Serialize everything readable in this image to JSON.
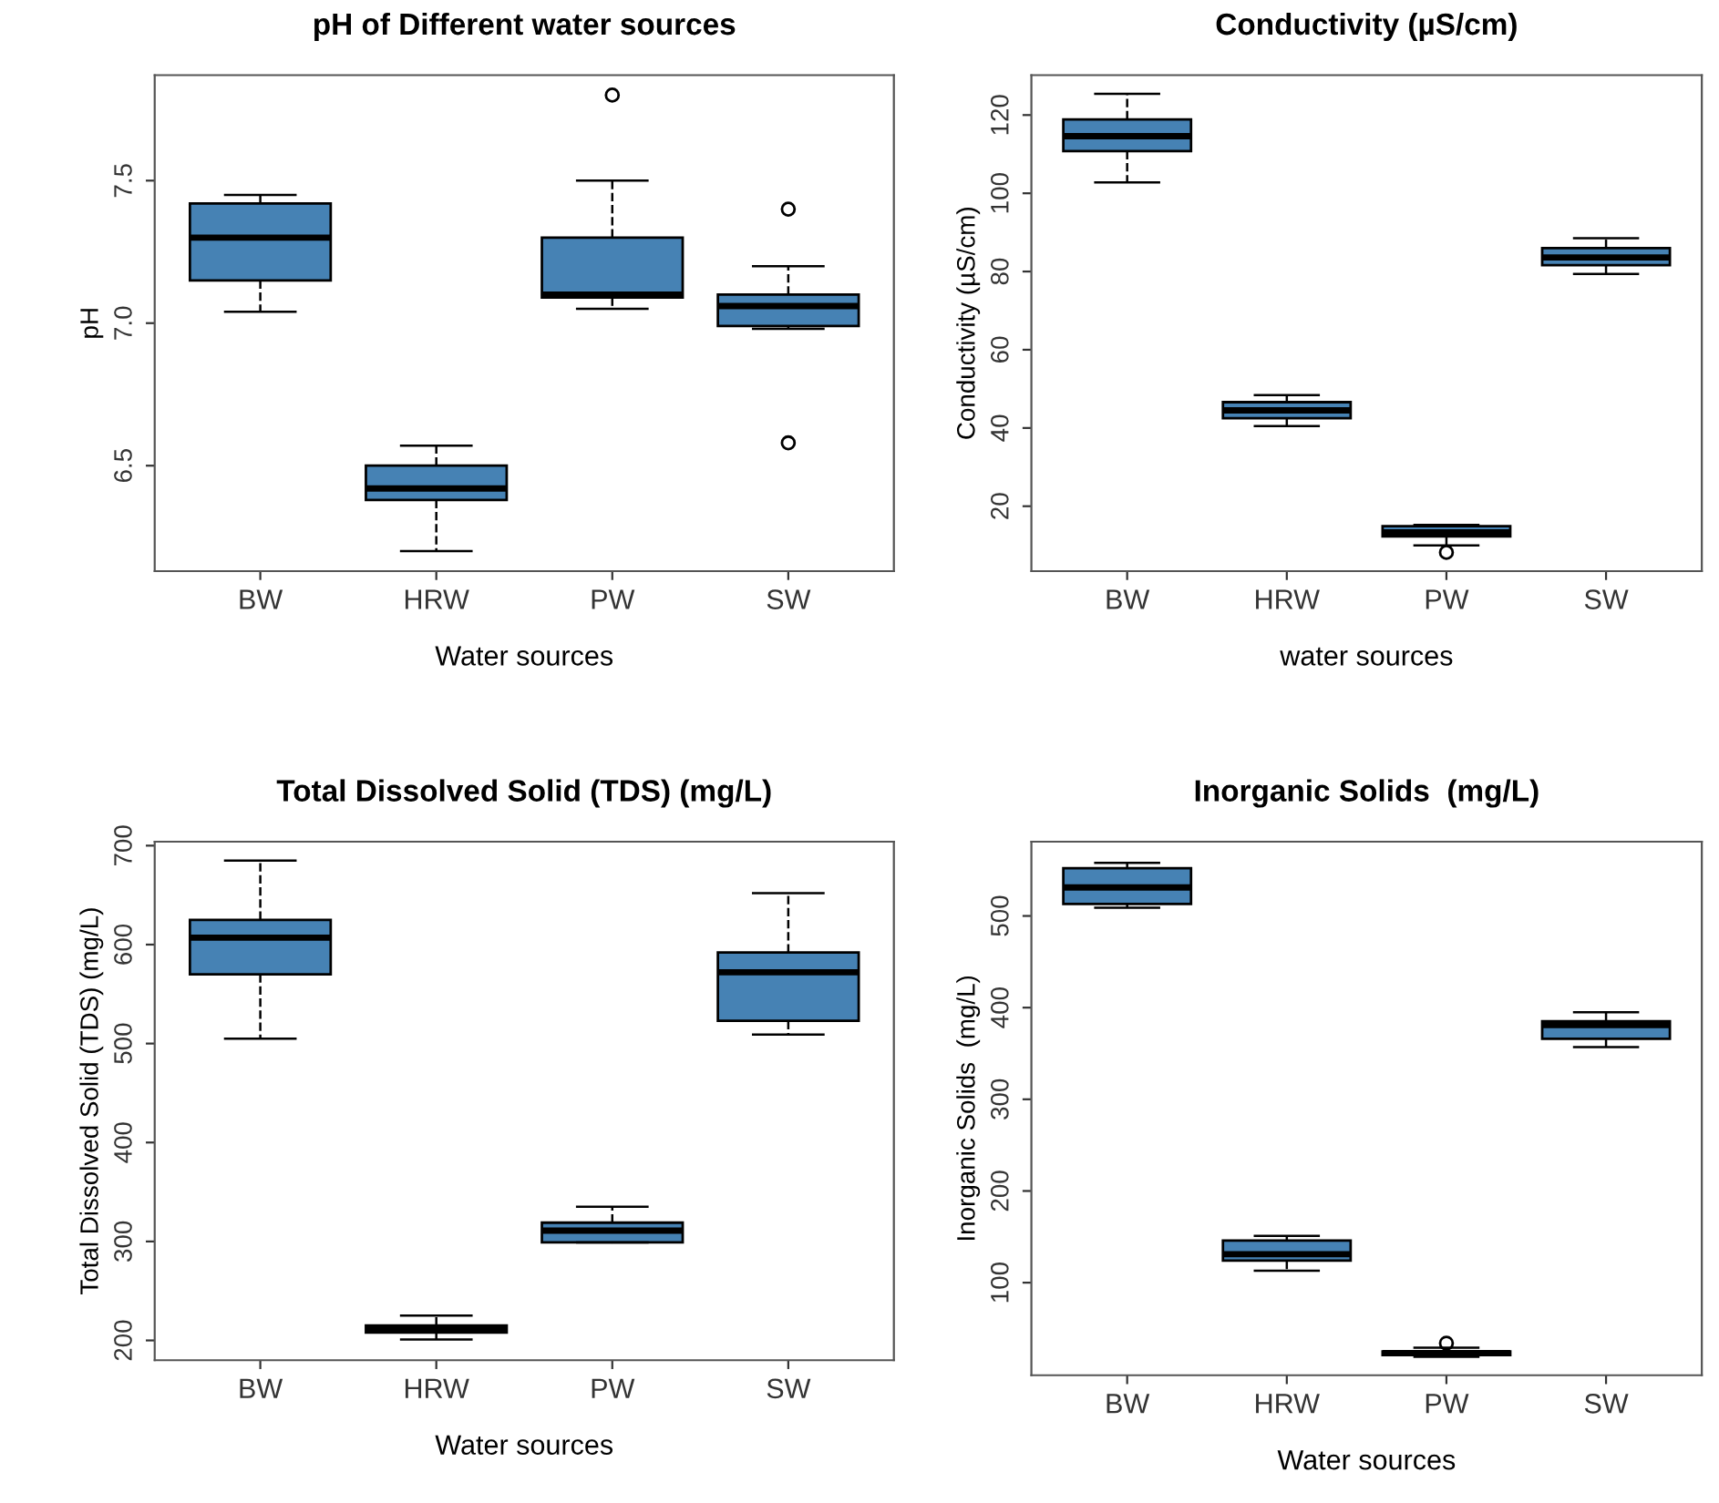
{
  "chart_data": [
    {
      "type": "box",
      "title": "pH of Different water sources",
      "xlabel": "Water sources",
      "ylabel": "pH",
      "categories": [
        "BW",
        "HRW",
        "PW",
        "SW"
      ],
      "color": "#4682b4",
      "ylim": [
        6.13,
        7.87
      ],
      "yticks": [
        6.5,
        {
          "value": 7.0,
          "label": "7.0"
        },
        7.5
      ],
      "boxes": [
        {
          "low": 7.04,
          "q1": 7.15,
          "median": 7.3,
          "q3": 7.42,
          "high": 7.45
        },
        {
          "low": 6.2,
          "q1": 6.38,
          "median": 6.42,
          "q3": 6.5,
          "high": 6.57
        },
        {
          "low": 7.05,
          "q1": 7.09,
          "median": 7.1,
          "q3": 7.3,
          "high": 7.5,
          "outliers": [
            7.8
          ]
        },
        {
          "low": 6.98,
          "q1": 6.99,
          "median": 7.06,
          "q3": 7.1,
          "high": 7.2,
          "outliers": [
            7.4,
            6.58
          ]
        }
      ]
    },
    {
      "type": "box",
      "title": "Conductivity (µS/cm)",
      "xlabel": "water sources",
      "ylabel": "Conductivity (µS/cm)",
      "categories": [
        "BW",
        "HRW",
        "PW",
        "SW"
      ],
      "color": "#4682b4",
      "ylim": [
        3.4,
        130.2
      ],
      "yticks": [
        20,
        40,
        60,
        80,
        100,
        120
      ],
      "boxes": [
        {
          "low": 102.8,
          "q1": 110.8,
          "median": 114.6,
          "q3": 118.9,
          "high": 125.4
        },
        {
          "low": 40.5,
          "q1": 42.5,
          "median": 44.5,
          "q3": 46.6,
          "high": 48.4
        },
        {
          "low": 10.0,
          "q1": 12.3,
          "median": 13.3,
          "q3": 14.9,
          "high": 15.2,
          "outliers": [
            8.2
          ]
        },
        {
          "low": 79.4,
          "q1": 81.6,
          "median": 83.6,
          "q3": 86.0,
          "high": 88.5
        }
      ]
    },
    {
      "type": "box",
      "title": "Total Dissolved Solid (TDS) (mg/L)",
      "xlabel": "Water sources",
      "ylabel": "Total Dissolved Solid (TDS) (mg/L)",
      "categories": [
        "BW",
        "HRW",
        "PW",
        "SW"
      ],
      "color": "#4682b4",
      "ylim": [
        180,
        704
      ],
      "yticks": [
        200,
        300,
        400,
        500,
        600,
        700
      ],
      "boxes": [
        {
          "low": 505,
          "q1": 570,
          "median": 607,
          "q3": 625,
          "high": 685
        },
        {
          "low": 201,
          "q1": 208,
          "median": 212,
          "q3": 215,
          "high": 225
        },
        {
          "low": 299,
          "q1": 299,
          "median": 311,
          "q3": 319,
          "high": 335
        },
        {
          "low": 509,
          "q1": 523,
          "median": 572,
          "q3": 592,
          "high": 652
        }
      ]
    },
    {
      "type": "box",
      "title": "Inorganic Solids  (mg/L)",
      "xlabel": "Water sources",
      "ylabel": "Inorganic Solids  (mg/L)",
      "categories": [
        "BW",
        "HRW",
        "PW",
        "SW"
      ],
      "color": "#4682b4",
      "ylim": [
        -1,
        581
      ],
      "yticks": [
        100,
        200,
        300,
        400,
        500
      ],
      "boxes": [
        {
          "low": 509,
          "q1": 513,
          "median": 531,
          "q3": 552,
          "high": 558
        },
        {
          "low": 113,
          "q1": 124,
          "median": 131,
          "q3": 146,
          "high": 151
        },
        {
          "low": 19,
          "q1": 21,
          "median": 23,
          "q3": 25,
          "high": 29,
          "outliers": [
            34
          ]
        },
        {
          "low": 357,
          "q1": 366,
          "median": 381,
          "q3": 385,
          "high": 395
        }
      ]
    }
  ]
}
